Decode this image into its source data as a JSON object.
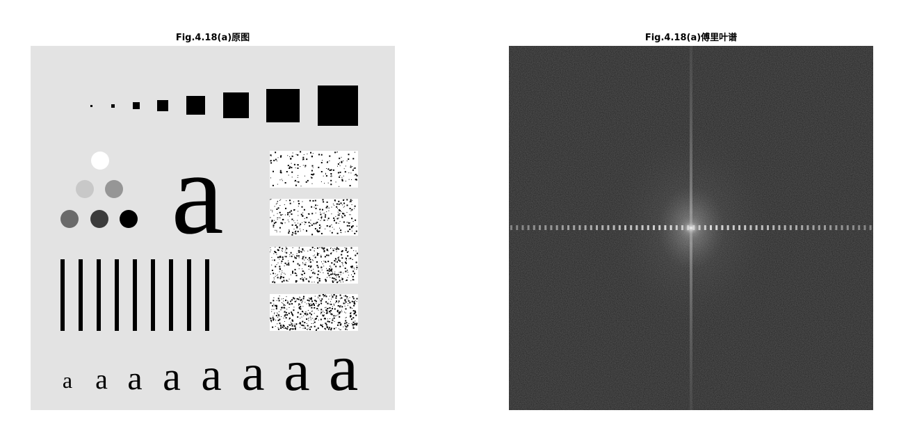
{
  "figure": {
    "left_title": "Fig.4.18(a)原图",
    "right_title": "Fig.4.18(a)傅里叶谱"
  },
  "original_image": {
    "background_color": "#e3e3e3",
    "circle_colors": [
      "#ffffff",
      "#c8c8c8",
      "#969696",
      "#6a6a6a",
      "#3c3c3c",
      "#000000"
    ],
    "big_letter": "a",
    "letter_row": [
      "a",
      "a",
      "a",
      "a",
      "a",
      "a",
      "a",
      "a"
    ]
  },
  "spectrum_image": {
    "background_color": "#222222",
    "center_color": "#ffffff"
  }
}
